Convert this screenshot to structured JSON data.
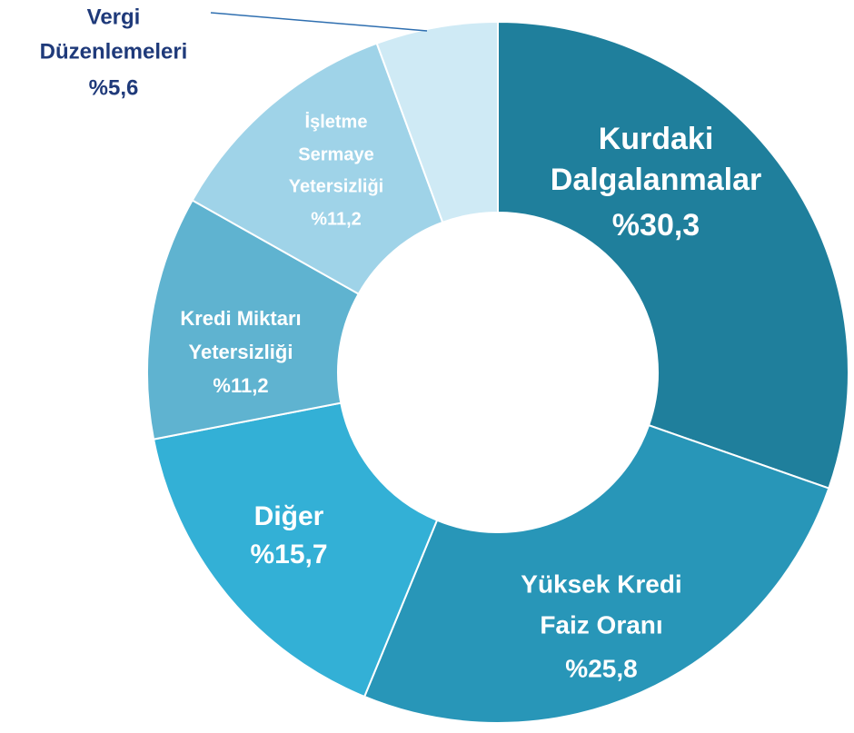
{
  "chart_data": {
    "type": "donut",
    "categories": [
      [
        "Kurdaki",
        "Dalgalanmalar"
      ],
      [
        "Yüksek Kredi",
        "Faiz Oranı"
      ],
      [
        "Diğer"
      ],
      [
        "Kredi Miktarı",
        "Yetersizliği"
      ],
      [
        "İşletme",
        "Sermaye",
        "Yetersizliği"
      ],
      [
        "Vergi",
        "Düzenlemeleri"
      ]
    ],
    "values": [
      30.3,
      25.8,
      15.7,
      11.2,
      11.2,
      5.6
    ],
    "value_labels": [
      "%30,3",
      "%25,8",
      "%15,7",
      "%11,2",
      "%11,2",
      "%5,6"
    ],
    "colors": [
      "#1f7f9c",
      "#2896b8",
      "#33b0d6",
      "#5fb3d0",
      "#9fd3e8",
      "#cfeaf5"
    ],
    "label_colors": [
      "#ffffff",
      "#ffffff",
      "#ffffff",
      "#ffffff",
      "#ffffff",
      "#1f3a7a"
    ]
  }
}
